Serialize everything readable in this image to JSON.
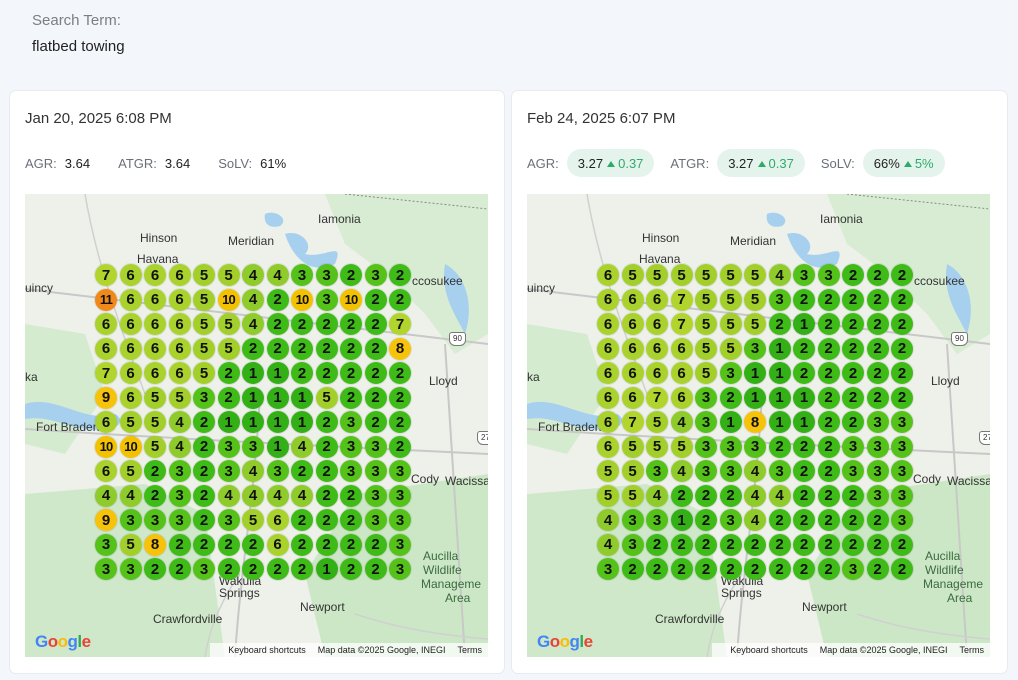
{
  "search": {
    "label": "Search Term:",
    "value": "flatbed towing"
  },
  "colors": {
    "1": "#33b016",
    "2": "#3ebb17",
    "3": "#55c21a",
    "4": "#8fcb2a",
    "5": "#a3cf2b",
    "6": "#aad22d",
    "7": "#b2d52e",
    "8": "#f7c20a",
    "9": "#f7c20a",
    "10": "#f2c100",
    "11": "#f0891a"
  },
  "map_labels": {
    "places": [
      "Hinson",
      "Havana",
      "Iamonia",
      "Meridian",
      "Lloyd",
      "Fort Braden",
      "Cody",
      "Wacissa",
      "Newport",
      "Crawfordville",
      "Springs",
      "Wakulla",
      "uincy",
      "ka",
      "ccosukee"
    ],
    "wildlife": [
      "Aucilla",
      "Wildlife",
      "Manageme",
      "Area"
    ],
    "route_90": "90",
    "route_27": "27"
  },
  "footer": {
    "google": "Google",
    "shortcuts": "Keyboard shortcuts",
    "map_data": "Map data ©2025 Google, INEGI",
    "terms": "Terms"
  },
  "cards": [
    {
      "date": "Jan 20, 2025 6:08 PM",
      "metrics": [
        {
          "label": "AGR:",
          "value": "3.64",
          "delta": ""
        },
        {
          "label": "ATGR:",
          "value": "3.64",
          "delta": ""
        },
        {
          "label": "SoLV:",
          "value": "61%",
          "delta": ""
        }
      ],
      "grid": [
        [
          7,
          6,
          6,
          6,
          5,
          5,
          4,
          4,
          3,
          3,
          2,
          3,
          2
        ],
        [
          11,
          6,
          6,
          6,
          5,
          10,
          4,
          2,
          10,
          3,
          10,
          2,
          2
        ],
        [
          6,
          6,
          6,
          6,
          5,
          5,
          4,
          2,
          2,
          2,
          2,
          2,
          7
        ],
        [
          6,
          6,
          6,
          6,
          5,
          5,
          2,
          2,
          2,
          2,
          2,
          2,
          8
        ],
        [
          7,
          6,
          6,
          6,
          5,
          2,
          1,
          1,
          2,
          2,
          2,
          2,
          2
        ],
        [
          9,
          6,
          5,
          5,
          3,
          2,
          1,
          1,
          1,
          5,
          2,
          2,
          2
        ],
        [
          6,
          5,
          5,
          4,
          2,
          1,
          1,
          1,
          1,
          2,
          3,
          2,
          2
        ],
        [
          10,
          10,
          5,
          4,
          2,
          3,
          3,
          1,
          4,
          2,
          3,
          3,
          2
        ],
        [
          6,
          5,
          2,
          3,
          2,
          3,
          4,
          3,
          2,
          2,
          3,
          3,
          3
        ],
        [
          4,
          4,
          2,
          3,
          2,
          4,
          4,
          4,
          4,
          2,
          2,
          3,
          3
        ],
        [
          9,
          3,
          3,
          3,
          2,
          3,
          5,
          6,
          2,
          2,
          2,
          3,
          3
        ],
        [
          3,
          5,
          8,
          2,
          2,
          2,
          2,
          6,
          2,
          2,
          2,
          2,
          3
        ],
        [
          3,
          3,
          2,
          2,
          3,
          2,
          2,
          2,
          2,
          1,
          2,
          2,
          3
        ]
      ]
    },
    {
      "date": "Feb 24, 2025 6:07 PM",
      "metrics": [
        {
          "label": "AGR:",
          "value": "3.27",
          "delta": "0.37"
        },
        {
          "label": "ATGR:",
          "value": "3.27",
          "delta": "0.37"
        },
        {
          "label": "SoLV:",
          "value": "66%",
          "delta": "5%"
        }
      ],
      "grid": [
        [
          6,
          5,
          5,
          5,
          5,
          5,
          5,
          4,
          3,
          3,
          2,
          2,
          2
        ],
        [
          6,
          6,
          6,
          7,
          5,
          5,
          5,
          3,
          2,
          2,
          2,
          2,
          2
        ],
        [
          6,
          6,
          6,
          7,
          5,
          5,
          5,
          2,
          1,
          2,
          2,
          2,
          2
        ],
        [
          6,
          6,
          6,
          6,
          5,
          5,
          3,
          1,
          2,
          2,
          2,
          2,
          2
        ],
        [
          6,
          6,
          6,
          6,
          5,
          3,
          1,
          1,
          2,
          2,
          2,
          2,
          2
        ],
        [
          6,
          6,
          7,
          6,
          3,
          2,
          1,
          1,
          1,
          2,
          2,
          2,
          2
        ],
        [
          6,
          7,
          5,
          4,
          3,
          1,
          8,
          1,
          1,
          2,
          2,
          3,
          3
        ],
        [
          6,
          5,
          5,
          5,
          3,
          3,
          3,
          2,
          2,
          2,
          3,
          3,
          3
        ],
        [
          5,
          5,
          3,
          4,
          3,
          3,
          4,
          3,
          2,
          2,
          3,
          3,
          3
        ],
        [
          5,
          5,
          4,
          2,
          2,
          2,
          4,
          4,
          2,
          2,
          2,
          3,
          3
        ],
        [
          4,
          3,
          3,
          1,
          2,
          3,
          4,
          2,
          2,
          2,
          2,
          2,
          3
        ],
        [
          4,
          3,
          2,
          2,
          2,
          2,
          2,
          2,
          2,
          2,
          2,
          2,
          2
        ],
        [
          3,
          2,
          2,
          2,
          2,
          2,
          2,
          2,
          2,
          2,
          3,
          2,
          2
        ]
      ]
    }
  ]
}
